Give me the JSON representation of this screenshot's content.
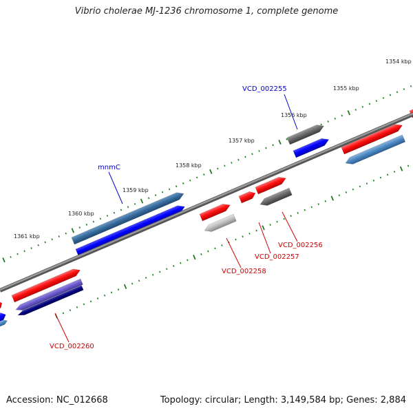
{
  "title": "Vibrio cholerae MJ-1236 chromosome 1, complete genome",
  "footer": {
    "accession": "Accession: NC_012668",
    "stats": "Topology: circular; Length: 3,149,584 bp; Genes: 2,884"
  },
  "colors": {
    "backbone": "#7a7a7a",
    "tick": "#1f7a1f",
    "forward_label": "#cc0000",
    "reverse_label": "#0000cc"
  },
  "scale_labels": [
    "1354 kbp",
    "1355 kbp",
    "1356 kbp",
    "1357 kbp",
    "1358 kbp",
    "1359 kbp",
    "1360 kbp",
    "1361 kbp"
  ],
  "gene_labels": [
    {
      "text": "VCD_002255",
      "color": "#0000cc"
    },
    {
      "text": "mnmC",
      "color": "#0000cc"
    },
    {
      "text": "VCD_002256",
      "color": "#cc0000"
    },
    {
      "text": "VCD_002257",
      "color": "#cc0000"
    },
    {
      "text": "VCD_002258",
      "color": "#cc0000"
    },
    {
      "text": "VCD_002260",
      "color": "#cc0000"
    }
  ]
}
